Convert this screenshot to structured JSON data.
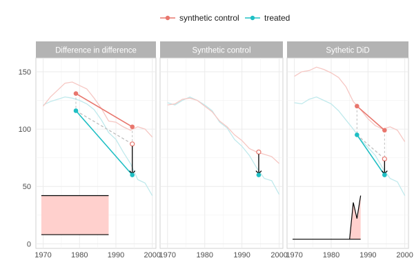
{
  "chart_data": {
    "type": "line",
    "legend": {
      "placement": "top",
      "entries": [
        {
          "name": "synthetic control",
          "color": "#E8766D"
        },
        {
          "name": "treated",
          "color": "#1FBFC4"
        }
      ]
    },
    "grid": true,
    "xlim": [
      1968,
      2001
    ],
    "ylim": [
      -4,
      162
    ],
    "x_ticks": [
      1970,
      1980,
      1990,
      2000
    ],
    "x_tick_labels": [
      "1970",
      "1980",
      "1990",
      "2000"
    ],
    "y_ticks": [
      0,
      50,
      100,
      150
    ],
    "y_tick_labels": [
      "0",
      "50",
      "100",
      "150"
    ],
    "colors": {
      "synthetic": "#E8766D",
      "treated": "#1FBFC4",
      "synthetic_faint": "#F6C7C3",
      "treated_faint": "#BFE9EC",
      "weights_fill": "#FFD0CD",
      "counterfactual": "#BDBDBD",
      "strip": "#B3B3B3"
    },
    "panels": [
      {
        "title": "Difference in difference",
        "treated_series": [
          [
            1970,
            121
          ],
          [
            1972,
            124
          ],
          [
            1974,
            126
          ],
          [
            1976,
            128
          ],
          [
            1978,
            127
          ],
          [
            1980,
            125
          ],
          [
            1982,
            122
          ],
          [
            1984,
            117
          ],
          [
            1986,
            108
          ],
          [
            1988,
            97
          ],
          [
            1990,
            91
          ],
          [
            1992,
            80
          ],
          [
            1994,
            70
          ],
          [
            1996,
            56
          ],
          [
            1998,
            53
          ],
          [
            2000,
            42
          ]
        ],
        "synthetic_series": [
          [
            1970,
            120
          ],
          [
            1972,
            128
          ],
          [
            1974,
            134
          ],
          [
            1976,
            140
          ],
          [
            1978,
            141
          ],
          [
            1980,
            138
          ],
          [
            1982,
            135
          ],
          [
            1984,
            127
          ],
          [
            1986,
            118
          ],
          [
            1988,
            107
          ],
          [
            1990,
            106
          ],
          [
            1992,
            102
          ],
          [
            1994,
            99
          ],
          [
            1996,
            102
          ],
          [
            1998,
            100
          ],
          [
            2000,
            93
          ]
        ],
        "pre_period_x": 1979,
        "post_period_x": 1994.5,
        "synthetic_pre": 131,
        "synthetic_post": 102,
        "treated_pre": 116,
        "treated_post": 60,
        "counterfactual_post": 87,
        "weights": {
          "x_start": 1969.5,
          "x_end": 1988,
          "y_low": 8,
          "y_high": 42
        }
      },
      {
        "title": "Synthetic control",
        "treated_series": [
          [
            1970,
            123
          ],
          [
            1972,
            121
          ],
          [
            1974,
            125
          ],
          [
            1976,
            128
          ],
          [
            1978,
            125
          ],
          [
            1980,
            121
          ],
          [
            1982,
            116
          ],
          [
            1984,
            106
          ],
          [
            1986,
            101
          ],
          [
            1988,
            91
          ],
          [
            1990,
            85
          ],
          [
            1992,
            77
          ],
          [
            1994,
            66
          ],
          [
            1996,
            57
          ],
          [
            1998,
            55
          ],
          [
            2000,
            43
          ]
        ],
        "synthetic_series": [
          [
            1970,
            121
          ],
          [
            1972,
            122
          ],
          [
            1974,
            126
          ],
          [
            1976,
            127
          ],
          [
            1978,
            125
          ],
          [
            1980,
            120
          ],
          [
            1982,
            115
          ],
          [
            1984,
            107
          ],
          [
            1986,
            102
          ],
          [
            1988,
            95
          ],
          [
            1990,
            90
          ],
          [
            1992,
            83
          ],
          [
            1994,
            80
          ],
          [
            1996,
            78
          ],
          [
            1998,
            76
          ],
          [
            2000,
            70
          ]
        ],
        "post_period_x": 1994.5,
        "synthetic_post": 80,
        "treated_post": 60
      },
      {
        "title": "Sythetic DiD",
        "treated_series": [
          [
            1970,
            123
          ],
          [
            1972,
            122
          ],
          [
            1974,
            126
          ],
          [
            1976,
            128
          ],
          [
            1978,
            125
          ],
          [
            1980,
            122
          ],
          [
            1982,
            116
          ],
          [
            1984,
            108
          ],
          [
            1986,
            100
          ],
          [
            1988,
            91
          ],
          [
            1990,
            84
          ],
          [
            1992,
            77
          ],
          [
            1994,
            66
          ],
          [
            1996,
            57
          ],
          [
            1998,
            54
          ],
          [
            2000,
            42
          ]
        ],
        "synthetic_series": [
          [
            1970,
            146
          ],
          [
            1972,
            150
          ],
          [
            1974,
            151
          ],
          [
            1976,
            154
          ],
          [
            1978,
            152
          ],
          [
            1980,
            149
          ],
          [
            1982,
            145
          ],
          [
            1984,
            137
          ],
          [
            1986,
            124
          ],
          [
            1988,
            117
          ],
          [
            1990,
            109
          ],
          [
            1992,
            103
          ],
          [
            1994,
            100
          ],
          [
            1996,
            102
          ],
          [
            1998,
            99
          ],
          [
            2000,
            89
          ]
        ],
        "pre_period_x": 1987,
        "post_period_x": 1994.5,
        "synthetic_pre": 120,
        "synthetic_post": 99,
        "treated_pre": 95,
        "treated_post": 60,
        "counterfactual_post": 74,
        "weights_profile": [
          [
            1969.5,
            4
          ],
          [
            1985,
            4
          ],
          [
            1986,
            36
          ],
          [
            1987,
            22
          ],
          [
            1988,
            42
          ]
        ]
      }
    ]
  }
}
